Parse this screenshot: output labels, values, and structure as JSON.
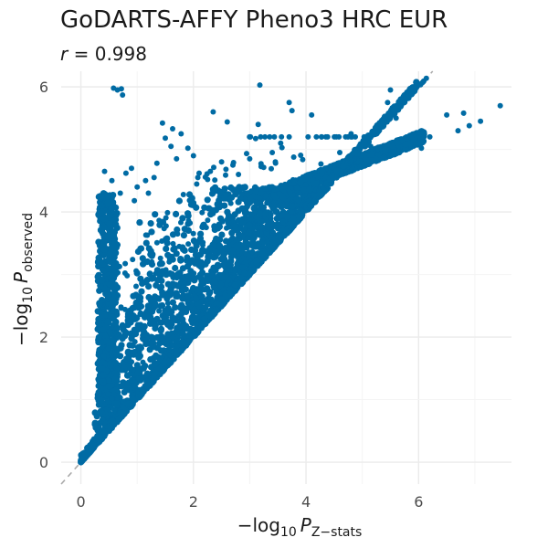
{
  "chart_data": {
    "type": "scatter",
    "title": "GoDARTS-AFFY Pheno3 HRC EUR",
    "subtitle": {
      "lhs": "r",
      "eq": " = ",
      "value": "0.998"
    },
    "xlabel": {
      "prefix": "−log",
      "sub10": "10",
      "var": "P",
      "sub": "Z−stats"
    },
    "ylabel": {
      "prefix": "−log",
      "sub10": "10",
      "var": "P",
      "sub": "observed"
    },
    "xlim": [
      -0.35,
      7.65
    ],
    "ylim": [
      -0.35,
      6.25
    ],
    "x_ticks": [
      0,
      2,
      4,
      6
    ],
    "y_ticks": [
      0,
      2,
      4,
      6
    ],
    "x_tick_labels": [
      "0",
      "2",
      "4",
      "6"
    ],
    "y_tick_labels": [
      "0",
      "2",
      "4",
      "6"
    ],
    "grid": true,
    "reference_line": {
      "type": "identity",
      "style": "dashed",
      "color": "#aaaaaa"
    },
    "point_color": "#006ba4",
    "outlier_points": [
      [
        0.58,
        5.98
      ],
      [
        0.65,
        5.95
      ],
      [
        0.72,
        5.97
      ],
      [
        0.74,
        5.87
      ],
      [
        3.18,
        6.03
      ],
      [
        2.35,
        5.6
      ],
      [
        2.6,
        5.44
      ],
      [
        1.45,
        5.42
      ],
      [
        1.63,
        5.33
      ],
      [
        1.78,
        5.25
      ],
      [
        1.5,
        5.18
      ],
      [
        1.6,
        5.05
      ],
      [
        1.9,
        5.02
      ],
      [
        2.0,
        4.9
      ],
      [
        3.15,
        5.4
      ],
      [
        3.7,
        5.75
      ],
      [
        3.75,
        5.62
      ],
      [
        4.1,
        5.55
      ],
      [
        5.5,
        5.95
      ],
      [
        5.45,
        5.75
      ],
      [
        5.6,
        5.5
      ],
      [
        6.5,
        5.55
      ],
      [
        6.8,
        5.58
      ],
      [
        6.9,
        5.38
      ],
      [
        7.1,
        5.45
      ],
      [
        7.45,
        5.7
      ],
      [
        6.7,
        5.3
      ],
      [
        6.2,
        5.2
      ],
      [
        5.9,
        5.15
      ],
      [
        6.05,
        5.02
      ],
      [
        0.42,
        4.65
      ],
      [
        0.8,
        4.62
      ],
      [
        0.9,
        4.7
      ],
      [
        1.3,
        4.55
      ],
      [
        1.0,
        4.4
      ],
      [
        0.55,
        4.5
      ],
      [
        2.5,
        4.8
      ],
      [
        2.7,
        4.75
      ],
      [
        3.0,
        4.85
      ],
      [
        2.3,
        4.65
      ],
      [
        2.8,
        4.6
      ],
      [
        3.4,
        4.95
      ],
      [
        3.55,
        5.1
      ],
      [
        0.5,
        4.25
      ],
      [
        0.7,
        4.3
      ],
      [
        1.2,
        4.3
      ],
      [
        1.15,
        4.5
      ],
      [
        4.8,
        5.25
      ],
      [
        5.15,
        5.05
      ],
      [
        5.05,
        4.85
      ],
      [
        4.6,
        4.95
      ],
      [
        1.35,
        4.78
      ],
      [
        2.1,
        4.62
      ],
      [
        0.95,
        4.18
      ],
      [
        1.7,
        4.85
      ]
    ]
  }
}
